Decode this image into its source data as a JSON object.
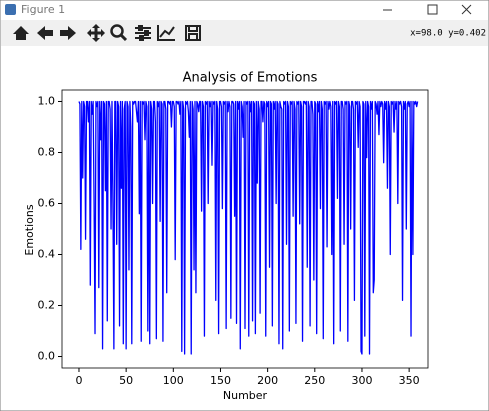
{
  "window": {
    "title": "Figure 1",
    "status": "x=98.0 y=0.402"
  },
  "chart_data": {
    "type": "line",
    "title": "Analysis of Emotions",
    "x_label": "Number",
    "y_label": "Emotions",
    "color": "#0000ff",
    "xlim": [
      -18,
      370
    ],
    "ylim": [
      -0.045,
      1.045
    ],
    "xticks": [
      0,
      50,
      100,
      150,
      200,
      250,
      300,
      350
    ],
    "yticks": [
      {
        "value": 0,
        "label": "0.0"
      },
      0.2,
      0.4,
      0.6,
      0.8,
      {
        "value": 1,
        "label": "1.0"
      }
    ],
    "x": [
      0,
      1,
      2,
      3,
      4,
      5,
      6,
      7,
      8,
      9,
      10,
      11,
      12,
      13,
      14,
      15,
      16,
      17,
      18,
      19,
      20,
      21,
      22,
      23,
      24,
      25,
      26,
      27,
      28,
      29,
      30,
      31,
      32,
      33,
      34,
      35,
      36,
      37,
      38,
      39,
      40,
      41,
      42,
      43,
      44,
      45,
      46,
      47,
      48,
      49,
      50,
      51,
      52,
      53,
      54,
      55,
      56,
      57,
      58,
      59,
      60,
      61,
      62,
      63,
      64,
      65,
      66,
      67,
      68,
      69,
      70,
      71,
      72,
      73,
      74,
      75,
      76,
      77,
      78,
      79,
      80,
      81,
      82,
      83,
      84,
      85,
      86,
      87,
      88,
      89,
      90,
      91,
      92,
      93,
      94,
      95,
      96,
      97,
      98,
      99,
      100,
      101,
      102,
      103,
      104,
      105,
      106,
      107,
      108,
      109,
      110,
      111,
      112,
      113,
      114,
      115,
      116,
      117,
      118,
      119,
      120,
      121,
      122,
      123,
      124,
      125,
      126,
      127,
      128,
      129,
      130,
      131,
      132,
      133,
      134,
      135,
      136,
      137,
      138,
      139,
      140,
      141,
      142,
      143,
      144,
      145,
      146,
      147,
      148,
      149,
      150,
      151,
      152,
      153,
      154,
      155,
      156,
      157,
      158,
      159,
      160,
      161,
      162,
      163,
      164,
      165,
      166,
      167,
      168,
      169,
      170,
      171,
      172,
      173,
      174,
      175,
      176,
      177,
      178,
      179,
      180,
      181,
      182,
      183,
      184,
      185,
      186,
      187,
      188,
      189,
      190,
      191,
      192,
      193,
      194,
      195,
      196,
      197,
      198,
      199,
      200,
      201,
      202,
      203,
      204,
      205,
      206,
      207,
      208,
      209,
      210,
      211,
      212,
      213,
      214,
      215,
      216,
      217,
      218,
      219,
      220,
      221,
      222,
      223,
      224,
      225,
      226,
      227,
      228,
      229,
      230,
      231,
      232,
      233,
      234,
      235,
      236,
      237,
      238,
      239,
      240,
      241,
      242,
      243,
      244,
      245,
      246,
      247,
      248,
      249,
      250,
      251,
      252,
      253,
      254,
      255,
      256,
      257,
      258,
      259,
      260,
      261,
      262,
      263,
      264,
      265,
      266,
      267,
      268,
      269,
      270,
      271,
      272,
      273,
      274,
      275,
      276,
      277,
      278,
      279,
      280,
      281,
      282,
      283,
      284,
      285,
      286,
      287,
      288,
      289,
      290,
      291,
      292,
      293,
      294,
      295,
      296,
      297,
      298,
      299,
      300,
      301,
      302,
      303,
      304,
      305,
      306,
      307,
      308,
      309,
      310,
      311,
      312,
      313,
      314,
      315,
      316,
      317,
      318,
      319,
      320,
      321,
      322,
      323,
      324,
      325,
      326,
      327,
      328,
      329,
      330,
      331,
      332,
      333,
      334,
      335,
      336,
      337,
      338,
      339,
      340,
      341,
      342,
      343,
      344,
      345,
      346,
      347,
      348,
      349,
      350,
      351,
      352,
      353,
      354,
      355,
      356,
      357,
      358,
      359
    ],
    "values": [
      1,
      0.99,
      0.42,
      1,
      0.7,
      1,
      0.98,
      0.46,
      1,
      1,
      0.92,
      1,
      0.28,
      1,
      0.95,
      1,
      0.6,
      0.09,
      1,
      0.98,
      1,
      0.27,
      1,
      0.85,
      1,
      0.03,
      1,
      0.99,
      0.65,
      1,
      0.14,
      1,
      1,
      0.97,
      0.5,
      1,
      0.6,
      0.03,
      1,
      1,
      0.44,
      1,
      0.98,
      0.12,
      1,
      0.66,
      1,
      0.05,
      0.97,
      1,
      0.03,
      1,
      0.98,
      0.34,
      1,
      0.9,
      0.05,
      1,
      0.99,
      1,
      1,
      0.96,
      0.92,
      1,
      0.56,
      1,
      0.06,
      1,
      0.99,
      1,
      0.85,
      1,
      0.98,
      0.1,
      1,
      0.05,
      1,
      0.97,
      0.6,
      1,
      1,
      0.92,
      0.07,
      1,
      0.98,
      1,
      0.53,
      1,
      0.99,
      0.06,
      1,
      1,
      0.97,
      0.25,
      1,
      1,
      0.99,
      1,
      0.9,
      1,
      1,
      0.98,
      0.38,
      1,
      1,
      0.99,
      1,
      0.95,
      1,
      0.02,
      1,
      0.97,
      0.01,
      1,
      0.99,
      1,
      0.96,
      0.86,
      1,
      0.01,
      1,
      0.97,
      0.34,
      1,
      0.25,
      1,
      0.99,
      0.96,
      1,
      1,
      0.57,
      1,
      0.98,
      0.08,
      1,
      0.99,
      1,
      0.6,
      1,
      0.98,
      1,
      0.75,
      1,
      0.99,
      1,
      0.22,
      1,
      0.97,
      0.09,
      1,
      1,
      0.98,
      0.58,
      1,
      0.99,
      1,
      0.11,
      1,
      0.96,
      1,
      0.98,
      0.15,
      1,
      1,
      0.99,
      0.55,
      1,
      0.13,
      1,
      0.97,
      1,
      0.03,
      1,
      0.98,
      0.86,
      1,
      0.11,
      1,
      0.99,
      1,
      0.08,
      1,
      0.96,
      1,
      0.14,
      1,
      0.99,
      0.09,
      1,
      0.68,
      1,
      0.97,
      0.17,
      1,
      1,
      0.92,
      1,
      0.99,
      0.08,
      1,
      0.98,
      1,
      0.35,
      1,
      0.99,
      0.12,
      1,
      0.97,
      1,
      0.6,
      1,
      0.99,
      0.05,
      1,
      0.98,
      0.97,
      0.03,
      1,
      0.99,
      1,
      0.44,
      1,
      0.98,
      0.1,
      1,
      0.99,
      1,
      0.55,
      1,
      0.97,
      0.13,
      1,
      0.99,
      1,
      0.52,
      1,
      0.98,
      0.06,
      1,
      1,
      0.99,
      1,
      0.35,
      1,
      0.98,
      0.12,
      1,
      1,
      0.95,
      0.3,
      1,
      0.99,
      0.09,
      1,
      0.96,
      1,
      0.58,
      1,
      0.97,
      0.07,
      1,
      0.99,
      1,
      0.43,
      1,
      0.97,
      1,
      0.98,
      0.4,
      1,
      0.05,
      1,
      0.99,
      1,
      0.62,
      1,
      0.98,
      0.1,
      1,
      1,
      0.97,
      0.44,
      1,
      0.99,
      1,
      0.06,
      1,
      0.98,
      0.5,
      1,
      1,
      0.97,
      0.22,
      1,
      0.99,
      1,
      0.82,
      1,
      0.98,
      0.02,
      0.01,
      1,
      0.99,
      0.08,
      1,
      0.78,
      1,
      0.98,
      0.01,
      1,
      0.97,
      1,
      0.25,
      0.3,
      1,
      0.99,
      0.95,
      1,
      0.87,
      1,
      0.98,
      1,
      0.99,
      0.76,
      1,
      0.97,
      1,
      0.66,
      1,
      0.98,
      0.4,
      1,
      0.99,
      1,
      0.88,
      1,
      0.97,
      1,
      0.6,
      1,
      0.99,
      1,
      0.98,
      0.22,
      1,
      0.97,
      1,
      0.5,
      0.99,
      1,
      0.98,
      1,
      0.08,
      1,
      0.4,
      1,
      0.99,
      1,
      0.98,
      1
    ]
  }
}
